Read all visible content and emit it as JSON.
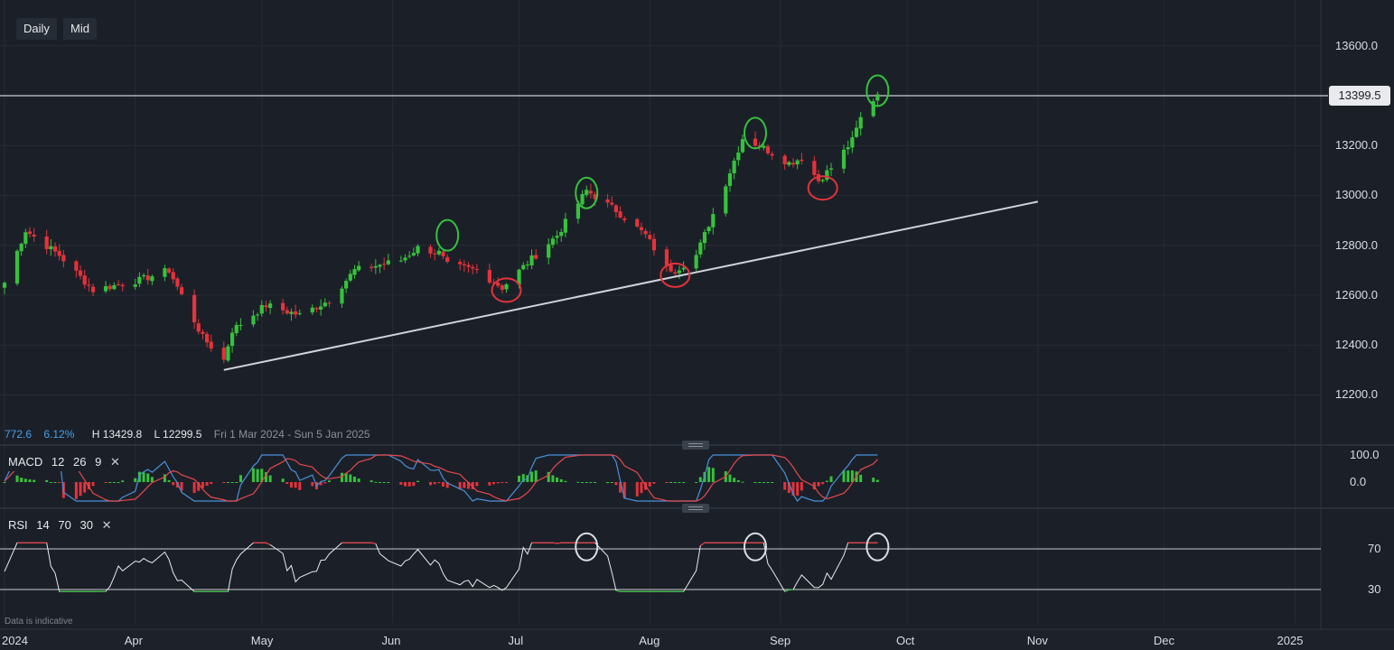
{
  "toolbar": {
    "daily_label": "Daily",
    "mid_label": "Mid"
  },
  "info": {
    "change": "772.6",
    "change_pct": "6.12%",
    "high": "H 13429.8",
    "low": "L 12299.5",
    "range": "Fri 1 Mar 2024 - Sun 5 Jan 2025"
  },
  "indicators": {
    "macd": {
      "label": "MACD",
      "p1": "12",
      "p2": "26",
      "p3": "9",
      "close": "✕"
    },
    "rsi": {
      "label": "RSI",
      "p1": "14",
      "p2": "70",
      "p3": "30",
      "close": "✕"
    }
  },
  "price_tag": "13399.5",
  "disclaimer": "Data is indicative",
  "colors": {
    "up": "#36c23c",
    "down": "#e5323b",
    "background": "#1b2028",
    "trendline": "#d0d3d8",
    "macd": "#4a90d9",
    "signal": "#e5484d"
  },
  "chart_data": {
    "type": "candlestick",
    "y_axis": {
      "min": 12100,
      "max": 13700,
      "ticks": [
        {
          "value": 13600,
          "label": "13600.0"
        },
        {
          "value": 13400,
          "label": "13399.5"
        },
        {
          "value": 13200,
          "label": "13200.0"
        },
        {
          "value": 13000,
          "label": "13000.0"
        },
        {
          "value": 12800,
          "label": "12800.0"
        },
        {
          "value": 12600,
          "label": "12600.0"
        },
        {
          "value": 12400,
          "label": "12400.0"
        },
        {
          "value": 12200,
          "label": "12200.0"
        }
      ]
    },
    "x_axis": {
      "ticks": [
        {
          "label": "2024",
          "date": "2024-03-01"
        },
        {
          "label": "Apr",
          "date": "2024-04-01"
        },
        {
          "label": "May",
          "date": "2024-05-01"
        },
        {
          "label": "Jun",
          "date": "2024-06-01"
        },
        {
          "label": "Jul",
          "date": "2024-07-01"
        },
        {
          "label": "Aug",
          "date": "2024-08-01"
        },
        {
          "label": "Sep",
          "date": "2024-09-01"
        },
        {
          "label": "Oct",
          "date": "2024-10-01"
        },
        {
          "label": "Nov",
          "date": "2024-11-01"
        },
        {
          "label": "Dec",
          "date": "2024-12-01"
        },
        {
          "label": "2025",
          "date": "2025-01-01"
        }
      ]
    },
    "price_line": 13400,
    "key_closes": [
      {
        "date": "2024-03-01",
        "close": 12650
      },
      {
        "date": "2024-03-06",
        "close": 12860
      },
      {
        "date": "2024-03-14",
        "close": 12760
      },
      {
        "date": "2024-03-22",
        "close": 12620
      },
      {
        "date": "2024-04-02",
        "close": 12660
      },
      {
        "date": "2024-04-09",
        "close": 12700
      },
      {
        "date": "2024-04-17",
        "close": 12430
      },
      {
        "date": "2024-04-22",
        "close": 12340
      },
      {
        "date": "2024-04-24",
        "close": 12460
      },
      {
        "date": "2024-05-02",
        "close": 12560
      },
      {
        "date": "2024-05-10",
        "close": 12520
      },
      {
        "date": "2024-05-17",
        "close": 12580
      },
      {
        "date": "2024-05-23",
        "close": 12700
      },
      {
        "date": "2024-06-03",
        "close": 12740
      },
      {
        "date": "2024-06-07",
        "close": 12790
      },
      {
        "date": "2024-06-12",
        "close": 12770
      },
      {
        "date": "2024-06-14",
        "close": 12720
      },
      {
        "date": "2024-06-21",
        "close": 12700
      },
      {
        "date": "2024-06-27",
        "close": 12630
      },
      {
        "date": "2024-07-03",
        "close": 12730
      },
      {
        "date": "2024-07-10",
        "close": 12840
      },
      {
        "date": "2024-07-17",
        "close": 13020
      },
      {
        "date": "2024-07-24",
        "close": 12940
      },
      {
        "date": "2024-07-31",
        "close": 12840
      },
      {
        "date": "2024-08-05",
        "close": 12710
      },
      {
        "date": "2024-08-07",
        "close": 12700
      },
      {
        "date": "2024-08-12",
        "close": 12760
      },
      {
        "date": "2024-08-19",
        "close": 13050
      },
      {
        "date": "2024-08-23",
        "close": 13230
      },
      {
        "date": "2024-08-27",
        "close": 13200
      },
      {
        "date": "2024-09-03",
        "close": 13130
      },
      {
        "date": "2024-09-06",
        "close": 13150
      },
      {
        "date": "2024-09-10",
        "close": 13060
      },
      {
        "date": "2024-09-13",
        "close": 13110
      },
      {
        "date": "2024-09-18",
        "close": 13220
      },
      {
        "date": "2024-09-20",
        "close": 13310
      },
      {
        "date": "2024-09-24",
        "close": 13410
      }
    ],
    "trendline": [
      {
        "date": "2024-04-22",
        "value": 12300
      },
      {
        "date": "2024-11-01",
        "value": 12975
      }
    ],
    "highlights": [
      {
        "date": "2024-06-14",
        "value": 12840,
        "color": "green"
      },
      {
        "date": "2024-07-17",
        "value": 13010,
        "color": "green"
      },
      {
        "date": "2024-08-26",
        "value": 13250,
        "color": "green"
      },
      {
        "date": "2024-09-24",
        "value": 13420,
        "color": "green"
      },
      {
        "date": "2024-06-28",
        "value": 12620,
        "color": "red"
      },
      {
        "date": "2024-08-07",
        "value": 12680,
        "color": "red"
      },
      {
        "date": "2024-09-11",
        "value": 13030,
        "color": "red"
      }
    ],
    "macd": {
      "label": "MACD",
      "params": [
        12,
        26,
        9
      ],
      "ticks": [
        {
          "value": 100,
          "label": "100.0"
        },
        {
          "value": 0,
          "label": "0.0"
        }
      ],
      "range": [
        -80,
        130
      ]
    },
    "rsi": {
      "label": "RSI",
      "params": [
        14,
        70,
        30
      ],
      "ticks": [
        {
          "value": 70,
          "label": "70"
        },
        {
          "value": 30,
          "label": "30"
        }
      ],
      "range": [
        10,
        95
      ],
      "highlights": [
        {
          "date": "2024-07-17"
        },
        {
          "date": "2024-08-26"
        },
        {
          "date": "2024-09-24"
        }
      ]
    }
  }
}
